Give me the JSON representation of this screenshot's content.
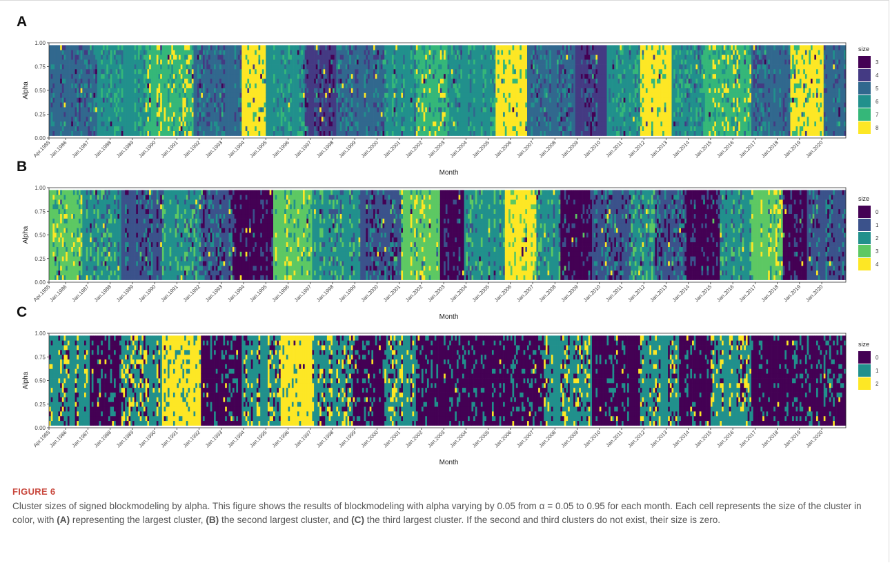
{
  "chart_data": [
    {
      "panel": "A",
      "type": "heatmap",
      "xlabel": "Month",
      "ylabel": "Alpha",
      "ylim": [
        0,
        1
      ],
      "y_ticks": [
        "0.00",
        "0.25",
        "0.50",
        "0.75",
        "1.00"
      ],
      "x_ticks": [
        "Apr.1985",
        "Jan.1986",
        "Jan.1987",
        "Jan.1988",
        "Jan.1989",
        "Jan.1990",
        "Jan.1991",
        "Jan.1992",
        "Jan.1993",
        "Jan.1994",
        "Jan.1995",
        "Jan.1996",
        "Jan.1997",
        "Jan.1998",
        "Jan.1999",
        "Jan.2000",
        "Jan.2001",
        "Jan.2002",
        "Jan.2003",
        "Jan.2004",
        "Jan.2005",
        "Jan.2006",
        "Jan.2007",
        "Jan.2008",
        "Jan.2009",
        "Jan.2010",
        "Jan.2011",
        "Jan.2012",
        "Jan.2013",
        "Jan.2014",
        "Jan.2015",
        "Jan.2016",
        "Jan.2017",
        "Jan.2018",
        "Jan.2019",
        "Jan.2020"
      ],
      "legend_title": "size",
      "legend_placement": "right",
      "legend": [
        {
          "value": "3",
          "color": "#440154"
        },
        {
          "value": "4",
          "color": "#443A83"
        },
        {
          "value": "5",
          "color": "#31688E"
        },
        {
          "value": "6",
          "color": "#21908C"
        },
        {
          "value": "7",
          "color": "#35B779"
        },
        {
          "value": "8",
          "color": "#FDE725"
        }
      ],
      "alpha_range": [
        0.05,
        0.95
      ],
      "alpha_step": 0.05,
      "month_range": [
        "Apr.1985",
        "Jan.2021"
      ]
    },
    {
      "panel": "B",
      "type": "heatmap",
      "xlabel": "Month",
      "ylabel": "Alpha",
      "ylim": [
        0,
        1
      ],
      "y_ticks": [
        "0.00",
        "0.25",
        "0.50",
        "0.75",
        "1.00"
      ],
      "x_ticks": [
        "Apr.1985",
        "Jan.1986",
        "Jan.1987",
        "Jan.1988",
        "Jan.1989",
        "Jan.1990",
        "Jan.1991",
        "Jan.1992",
        "Jan.1993",
        "Jan.1994",
        "Jan.1995",
        "Jan.1996",
        "Jan.1997",
        "Jan.1998",
        "Jan.1999",
        "Jan.2000",
        "Jan.2001",
        "Jan.2002",
        "Jan.2003",
        "Jan.2004",
        "Jan.2005",
        "Jan.2006",
        "Jan.2007",
        "Jan.2008",
        "Jan.2009",
        "Jan.2010",
        "Jan.2011",
        "Jan.2012",
        "Jan.2013",
        "Jan.2014",
        "Jan.2015",
        "Jan.2016",
        "Jan.2017",
        "Jan.2018",
        "Jan.2019",
        "Jan.2020"
      ],
      "legend_title": "size",
      "legend_placement": "right",
      "legend": [
        {
          "value": "0",
          "color": "#440154"
        },
        {
          "value": "1",
          "color": "#3B528B"
        },
        {
          "value": "2",
          "color": "#21908C"
        },
        {
          "value": "3",
          "color": "#5DC863"
        },
        {
          "value": "4",
          "color": "#FDE725"
        }
      ],
      "alpha_range": [
        0.05,
        0.95
      ],
      "alpha_step": 0.05,
      "month_range": [
        "Apr.1985",
        "Jan.2021"
      ]
    },
    {
      "panel": "C",
      "type": "heatmap",
      "xlabel": "Month",
      "ylabel": "Alpha",
      "ylim": [
        0,
        1
      ],
      "y_ticks": [
        "0.00",
        "0.25",
        "0.50",
        "0.75",
        "1.00"
      ],
      "x_ticks": [
        "Apr.1985",
        "Jan.1986",
        "Jan.1987",
        "Jan.1988",
        "Jan.1989",
        "Jan.1990",
        "Jan.1991",
        "Jan.1992",
        "Jan.1993",
        "Jan.1994",
        "Jan.1995",
        "Jan.1996",
        "Jan.1997",
        "Jan.1998",
        "Jan.1999",
        "Jan.2000",
        "Jan.2001",
        "Jan.2002",
        "Jan.2003",
        "Jan.2004",
        "Jan.2005",
        "Jan.2006",
        "Jan.2007",
        "Jan.2008",
        "Jan.2009",
        "Jan.2010",
        "Jan.2011",
        "Jan.2012",
        "Jan.2013",
        "Jan.2014",
        "Jan.2015",
        "Jan.2016",
        "Jan.2017",
        "Jan.2018",
        "Jan.2019",
        "Jan.2020"
      ],
      "legend_title": "size",
      "legend_placement": "right",
      "legend": [
        {
          "value": "0",
          "color": "#440154"
        },
        {
          "value": "1",
          "color": "#21908C"
        },
        {
          "value": "2",
          "color": "#FDE725"
        }
      ],
      "alpha_range": [
        0.05,
        0.95
      ],
      "alpha_step": 0.05,
      "month_range": [
        "Apr.1985",
        "Jan.2021"
      ]
    }
  ],
  "figure": {
    "label": "FIGURE 6",
    "caption": {
      "part1": "Cluster sizes of signed blockmodeling by alpha. This figure shows the results of blockmodeling with alpha varying by 0.05 from α = 0.05 to 0.95 for each month. Each cell represents the size of the cluster in color, with ",
      "tagA": "(A)",
      "part2": " representing the largest cluster, ",
      "tagB": "(B)",
      "part3": " the second largest cluster, and ",
      "tagC": "(C)",
      "part4": " the third largest cluster. If the second and third clusters do not exist, their size is zero."
    }
  }
}
